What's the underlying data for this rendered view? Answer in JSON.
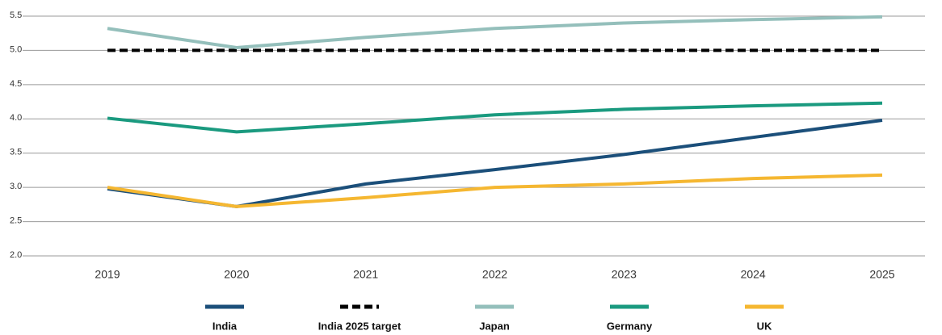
{
  "chart_data": {
    "type": "line",
    "categories": [
      "2019",
      "2020",
      "2021",
      "2022",
      "2023",
      "2024",
      "2025"
    ],
    "series": [
      {
        "name": "India",
        "color": "#1b4f7a",
        "values": [
          2.98,
          2.72,
          3.05,
          3.26,
          3.48,
          3.73,
          3.98
        ]
      },
      {
        "name": "India 2025 target",
        "color": "#000000",
        "linestyle": "dashed",
        "values": [
          5.0,
          5.0,
          5.0,
          5.0,
          5.0,
          5.0,
          5.0
        ]
      },
      {
        "name": "Japan",
        "color": "#94bfbb",
        "values": [
          5.32,
          5.04,
          5.19,
          5.32,
          5.4,
          5.45,
          5.49
        ]
      },
      {
        "name": "Germany",
        "color": "#1a9a7f",
        "values": [
          4.01,
          3.81,
          3.93,
          4.06,
          4.14,
          4.19,
          4.23
        ]
      },
      {
        "name": "UK",
        "color": "#f5b731",
        "values": [
          3.0,
          2.72,
          2.85,
          3.0,
          3.05,
          3.13,
          3.18
        ]
      }
    ],
    "ylim": [
      2.0,
      5.5
    ],
    "yticks": [
      {
        "value": 2,
        "label": "2.0"
      },
      2.5,
      {
        "value": 3,
        "label": "3.0"
      },
      3.5,
      {
        "value": 4,
        "label": "4.0"
      },
      4.5,
      {
        "value": 5,
        "label": "5.0"
      },
      5.5
    ],
    "grid": true,
    "legend": "bottom"
  }
}
